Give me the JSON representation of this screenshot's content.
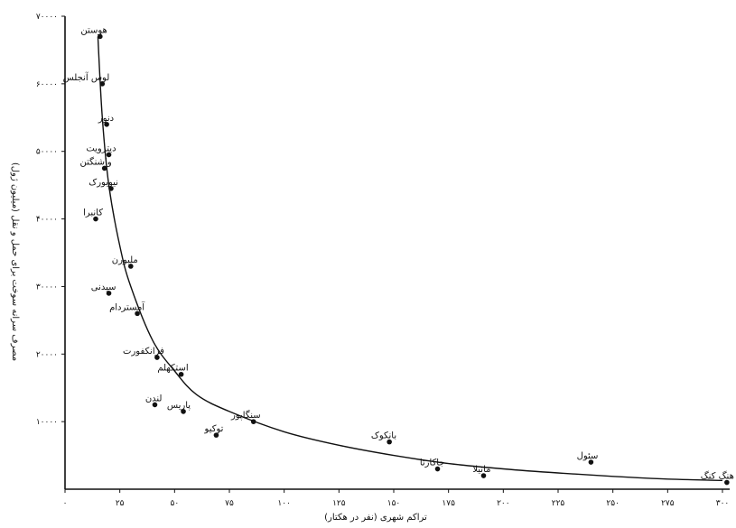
{
  "chart_data": {
    "type": "scatter",
    "title": "",
    "xlabel": "تراکم شهری (نفر در هکتار)",
    "ylabel": "مصرف سرانه سوخت برای حمل و نقل (میلیون ژول)",
    "xlim": [
      0,
      300
    ],
    "ylim": [
      0,
      70000
    ],
    "x_ticks": [
      0,
      25,
      50,
      75,
      100,
      125,
      150,
      175,
      200,
      225,
      250,
      275,
      300
    ],
    "x_tick_labels": [
      "۰",
      "۲۵",
      "۵۰",
      "۷۵",
      "۱۰۰",
      "۱۲۵",
      "۱۵۰",
      "۱۷۵",
      "۲۰۰",
      "۲۲۵",
      "۲۵۰",
      "۲۷۵",
      "۳۰۰"
    ],
    "y_ticks": [
      10000,
      20000,
      30000,
      40000,
      50000,
      60000,
      70000
    ],
    "y_tick_labels": [
      "۱۰۰۰۰",
      "۲۰۰۰۰",
      "۳۰۰۰۰",
      "۴۰۰۰۰",
      "۵۰۰۰۰",
      "۶۰۰۰۰",
      "۷۰۰۰۰"
    ],
    "points": [
      {
        "label": "هوستن",
        "x": 16,
        "y": 67000
      },
      {
        "label": "لوس آنجلس",
        "x": 17,
        "y": 60000
      },
      {
        "label": "دنور",
        "x": 19,
        "y": 54000
      },
      {
        "label": "دیترویت",
        "x": 20,
        "y": 49500
      },
      {
        "label": "واشنگتن",
        "x": 18,
        "y": 47500
      },
      {
        "label": "نیویورک",
        "x": 21,
        "y": 44500
      },
      {
        "label": "کانبرا",
        "x": 14,
        "y": 40000
      },
      {
        "label": "ملبورن",
        "x": 30,
        "y": 33000
      },
      {
        "label": "سیدنی",
        "x": 20,
        "y": 29000
      },
      {
        "label": "آمستردام",
        "x": 33,
        "y": 26000
      },
      {
        "label": "فرانکفورت",
        "x": 42,
        "y": 19500
      },
      {
        "label": "استکهلم",
        "x": 53,
        "y": 17000
      },
      {
        "label": "لندن",
        "x": 41,
        "y": 12500
      },
      {
        "label": "پاریس",
        "x": 54,
        "y": 11500
      },
      {
        "label": "توکیو",
        "x": 69,
        "y": 8000
      },
      {
        "label": "سنگاپور",
        "x": 86,
        "y": 10000
      },
      {
        "label": "بانکوک",
        "x": 148,
        "y": 7000
      },
      {
        "label": "جاکارتا",
        "x": 170,
        "y": 3000
      },
      {
        "label": "مانیلا",
        "x": 191,
        "y": 2000
      },
      {
        "label": "سئول",
        "x": 240,
        "y": 4000
      },
      {
        "label": "هنگ کنگ",
        "x": 302,
        "y": 1000
      }
    ],
    "trend": [
      [
        15,
        67000
      ],
      [
        17,
        55000
      ],
      [
        20,
        45000
      ],
      [
        25,
        36000
      ],
      [
        30,
        30000
      ],
      [
        40,
        22000
      ],
      [
        50,
        17500
      ],
      [
        60,
        14000
      ],
      [
        75,
        11500
      ],
      [
        100,
        8500
      ],
      [
        125,
        6500
      ],
      [
        150,
        5000
      ],
      [
        175,
        3800
      ],
      [
        200,
        3000
      ],
      [
        225,
        2400
      ],
      [
        250,
        1900
      ],
      [
        275,
        1500
      ],
      [
        300,
        1300
      ]
    ],
    "grid": false,
    "legend": "none"
  }
}
